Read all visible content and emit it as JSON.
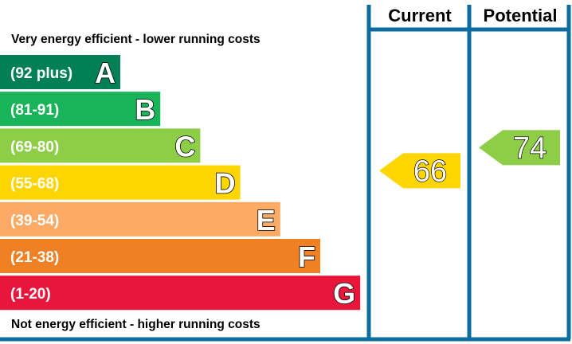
{
  "chart_data": {
    "type": "bar",
    "top_caption": "Very energy efficient - lower running costs",
    "bottom_caption": "Not energy efficient - higher running costs",
    "columns": [
      "Current",
      "Potential"
    ],
    "bands": [
      {
        "letter": "A",
        "range": "(92 plus)",
        "min": 92,
        "max": 100,
        "color": "#008054"
      },
      {
        "letter": "B",
        "range": "(81-91)",
        "min": 81,
        "max": 91,
        "color": "#19b459"
      },
      {
        "letter": "C",
        "range": "(69-80)",
        "min": 69,
        "max": 80,
        "color": "#8dce46"
      },
      {
        "letter": "D",
        "range": "(55-68)",
        "min": 55,
        "max": 68,
        "color": "#ffd500"
      },
      {
        "letter": "E",
        "range": "(39-54)",
        "min": 39,
        "max": 54,
        "color": "#fcaa65"
      },
      {
        "letter": "F",
        "range": "(21-38)",
        "min": 21,
        "max": 38,
        "color": "#ef8023"
      },
      {
        "letter": "G",
        "range": "(1-20)",
        "min": 1,
        "max": 20,
        "color": "#e9153b"
      }
    ],
    "ratings": [
      {
        "column": "Current",
        "value": 66,
        "band": "D",
        "color": "#ffd500"
      },
      {
        "column": "Potential",
        "value": 74,
        "band": "C",
        "color": "#8dce46"
      }
    ],
    "frame_color": "#0b6e9e"
  }
}
